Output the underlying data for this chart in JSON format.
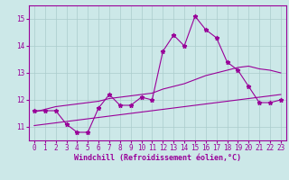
{
  "xlabel": "Windchill (Refroidissement éolien,°C)",
  "ylabel": "",
  "bg_color": "#cce8e8",
  "line_color": "#990099",
  "grid_color": "#aacccc",
  "x_data": [
    0,
    1,
    2,
    3,
    4,
    5,
    6,
    7,
    8,
    9,
    10,
    11,
    12,
    13,
    14,
    15,
    16,
    17,
    18,
    19,
    20,
    21,
    22,
    23
  ],
  "y_main": [
    11.6,
    11.6,
    11.6,
    11.1,
    10.8,
    10.8,
    11.7,
    12.2,
    11.8,
    11.8,
    12.1,
    12.0,
    13.8,
    14.4,
    14.0,
    15.1,
    14.6,
    14.3,
    13.4,
    13.1,
    12.5,
    11.9,
    11.9,
    12.0
  ],
  "y_line1": [
    11.05,
    11.1,
    11.15,
    11.2,
    11.25,
    11.3,
    11.35,
    11.4,
    11.45,
    11.5,
    11.55,
    11.6,
    11.65,
    11.7,
    11.75,
    11.8,
    11.85,
    11.9,
    11.95,
    12.0,
    12.05,
    12.1,
    12.15,
    12.2
  ],
  "y_line2": [
    11.55,
    11.65,
    11.75,
    11.8,
    11.85,
    11.9,
    11.95,
    12.05,
    12.1,
    12.15,
    12.2,
    12.25,
    12.4,
    12.5,
    12.6,
    12.75,
    12.9,
    13.0,
    13.1,
    13.2,
    13.25,
    13.15,
    13.1,
    13.0
  ],
  "ylim": [
    10.5,
    15.5
  ],
  "xlim": [
    -0.5,
    23.5
  ],
  "yticks": [
    11,
    12,
    13,
    14,
    15
  ],
  "xticks": [
    0,
    1,
    2,
    3,
    4,
    5,
    6,
    7,
    8,
    9,
    10,
    11,
    12,
    13,
    14,
    15,
    16,
    17,
    18,
    19,
    20,
    21,
    22,
    23
  ],
  "tick_fontsize": 5.5,
  "xlabel_fontsize": 6.0
}
